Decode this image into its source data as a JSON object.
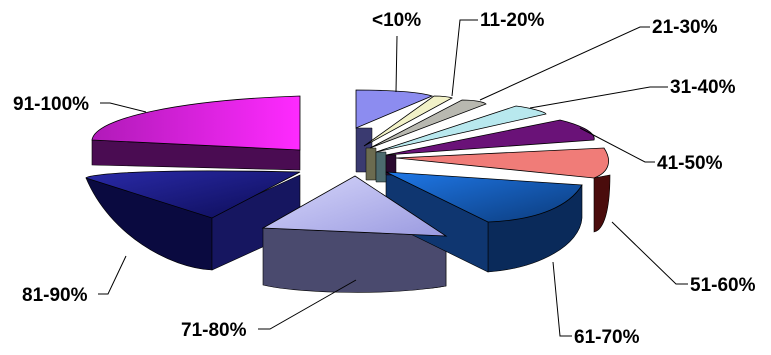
{
  "chart_data": {
    "type": "pie",
    "style": "3d-exploded",
    "categories": [
      "<10%",
      "11-20%",
      "21-30%",
      "31-40%",
      "41-50%",
      "51-60%",
      "61-70%",
      "71-80%",
      "81-90%",
      "91-100%"
    ],
    "values": [
      5,
      2,
      2,
      4,
      6,
      7,
      14,
      15,
      17,
      28
    ],
    "colors": [
      "#8c8cf0",
      "#f2f2c8",
      "#b8e8ee",
      "#6a1278",
      "#f07c78",
      "#1a6ad8",
      "#bcbcf2",
      "#1a1a80",
      "#e01ee0",
      "#9a70c8"
    ],
    "legend": "none",
    "title": ""
  }
}
